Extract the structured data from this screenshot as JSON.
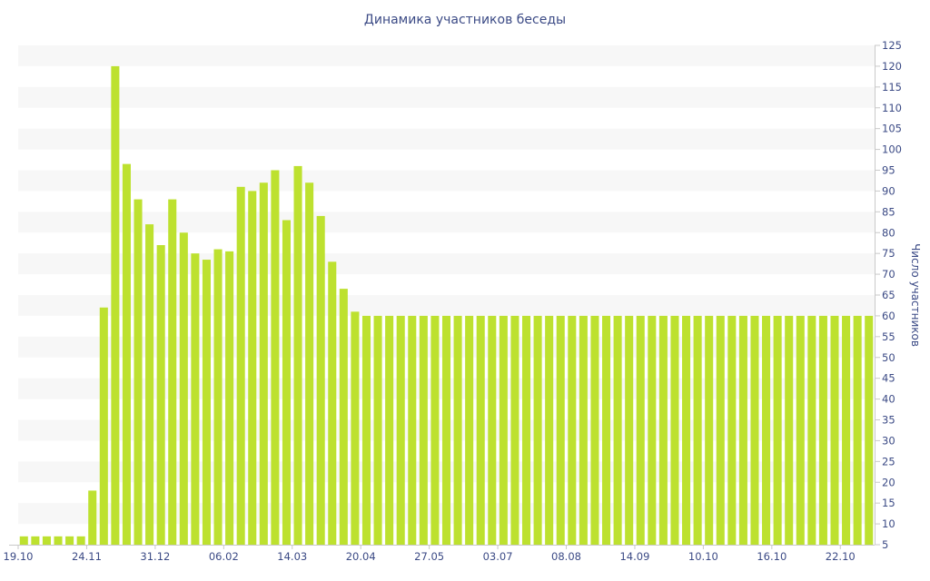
{
  "chart_data": {
    "type": "bar",
    "title": "Динамика участников беседы",
    "ylabel": "Число участников",
    "xlabel": "",
    "ylim": [
      5,
      125
    ],
    "ytick_step": 5,
    "y_axis_side": "right",
    "grid": "alternating-bands",
    "bar_color": "#bde12f",
    "band_color": "#f7f7f7",
    "text_color": "#3b4a85",
    "x_tick_labels": [
      "19.10",
      "24.11",
      "31.12",
      "06.02",
      "14.03",
      "20.04",
      "27.05",
      "03.07",
      "08.08",
      "14.09",
      "10.10",
      "16.10",
      "22.10"
    ],
    "x_tick_positions": [
      0,
      6,
      12,
      18,
      24,
      30,
      36,
      42,
      48,
      54,
      60,
      66,
      72
    ],
    "values": [
      7,
      7,
      7,
      7,
      7,
      7,
      18,
      62,
      120,
      96.5,
      88,
      82,
      77,
      88,
      80,
      75,
      73.5,
      76,
      75.5,
      91,
      90,
      92,
      95,
      83,
      96,
      92,
      84,
      73,
      66.5,
      61,
      60,
      60,
      60,
      60,
      60,
      60,
      60,
      60,
      60,
      60,
      60,
      60,
      60,
      60,
      60,
      60,
      60,
      60,
      60,
      60,
      60,
      60,
      60,
      60,
      60,
      60,
      60,
      60,
      60,
      60,
      60,
      60,
      60,
      60,
      60,
      60,
      60,
      60,
      60,
      60,
      60,
      60,
      60,
      60,
      60
    ]
  }
}
